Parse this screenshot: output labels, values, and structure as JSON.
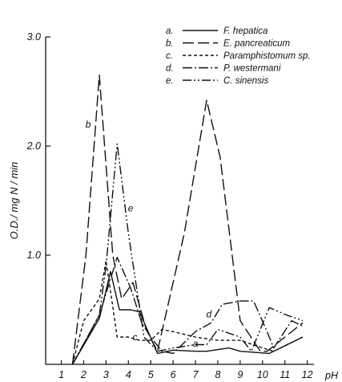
{
  "chart_data": {
    "type": "line",
    "xlabel": "pH",
    "ylabel": "O.D./ mg N / min",
    "xlim": [
      0.3,
      12.3
    ],
    "ylim": [
      0,
      3.0
    ],
    "x_ticks": [
      1,
      2,
      3,
      4,
      5,
      6,
      7,
      8,
      9,
      10,
      11,
      12
    ],
    "y_ticks": [
      1.0,
      2.0,
      3.0
    ],
    "y_tick_labels": [
      "1.0",
      "2.0",
      "3.0"
    ],
    "legend_position": "top-right",
    "series": [
      {
        "letter": "a.",
        "name": "F. hepatica",
        "dash": "",
        "x": [
          1.5,
          2.7,
          3.2,
          3.6,
          4.1,
          4.5,
          5.3,
          6.0,
          7.0,
          7.5,
          8.5,
          9.0,
          10.3,
          11.8
        ],
        "y": [
          0.0,
          0.42,
          0.85,
          0.5,
          0.5,
          0.48,
          0.1,
          0.13,
          0.12,
          0.12,
          0.15,
          0.12,
          0.1,
          0.25
        ]
      },
      {
        "letter": "b.",
        "name": "E. pancreaticum",
        "dash": "14 5",
        "x": [
          1.5,
          2.1,
          2.7,
          3.3,
          3.7,
          4.2,
          4.8,
          5.3,
          6.5,
          7.5,
          8.1,
          9.0,
          9.9,
          10.2,
          11.8
        ],
        "y": [
          0.0,
          1.0,
          2.65,
          1.0,
          0.6,
          0.75,
          0.32,
          0.12,
          1.2,
          2.42,
          1.9,
          0.4,
          0.12,
          0.12,
          0.38
        ]
      },
      {
        "letter": "c.",
        "name": "Paramphistomum sp.",
        "dash": "4 3",
        "x": [
          1.5,
          2.0,
          2.7,
          3.0,
          3.5,
          4.0,
          4.5,
          5.0,
          5.5,
          6.0,
          7.0,
          8.0,
          9.0,
          10.0,
          10.5,
          11.8
        ],
        "y": [
          0.0,
          0.4,
          0.6,
          0.95,
          0.25,
          0.25,
          0.22,
          0.22,
          0.32,
          0.3,
          0.25,
          0.22,
          0.22,
          0.15,
          0.12,
          0.25
        ]
      },
      {
        "letter": "d.",
        "name": "P. westermani",
        "dash": "12 3 2 3",
        "x": [
          1.5,
          2.7,
          3.5,
          4.1,
          4.6,
          5.0,
          5.5,
          6.0,
          7.0,
          7.7,
          8.2,
          9.0,
          9.6,
          10.2,
          10.5,
          11.3,
          11.8
        ],
        "y": [
          0.0,
          0.45,
          0.98,
          0.7,
          0.38,
          0.25,
          0.12,
          0.1,
          0.3,
          0.38,
          0.55,
          0.58,
          0.58,
          0.3,
          0.15,
          0.4,
          0.35
        ]
      },
      {
        "letter": "e.",
        "name": "C. sinensis",
        "dash": "11 3 2 3 2 3",
        "x": [
          1.5,
          2.7,
          3.0,
          3.5,
          4.0,
          4.7,
          5.3,
          6.0,
          7.0,
          7.5,
          8.0,
          9.0,
          9.5,
          10.3,
          11.1,
          11.8
        ],
        "y": [
          0.0,
          0.45,
          0.9,
          2.02,
          1.2,
          0.25,
          0.12,
          0.15,
          0.18,
          0.18,
          0.32,
          0.25,
          0.12,
          0.52,
          0.45,
          0.4
        ]
      }
    ],
    "annotations": [
      {
        "text": "b",
        "x": 2.2,
        "y": 2.17
      },
      {
        "text": "e",
        "x": 4.1,
        "y": 1.4
      },
      {
        "text": "d",
        "x": 7.6,
        "y": 0.43
      },
      {
        "text": "c",
        "x": 4.3,
        "y": 0.22
      },
      {
        "text": "a",
        "x": 7.0,
        "y": 0.16
      }
    ]
  }
}
